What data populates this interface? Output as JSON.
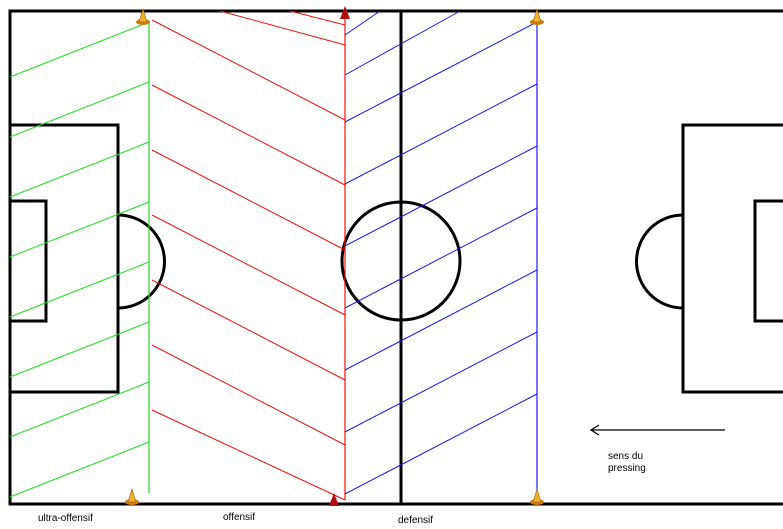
{
  "labels": {
    "ultra_offensif": "ultra-offensif",
    "offensif": "offensif",
    "defensif": "defensif",
    "pressing_line1": "sens du",
    "pressing_line2": "pressing"
  },
  "colors": {
    "pitch_lines": "#000000",
    "ultra_offensif_zone": "#22dd22",
    "offensif_zone": "#ee1111",
    "defensif_zone": "#1a1aee",
    "cone": "#e8a020",
    "red_cone": "#b01010"
  }
}
